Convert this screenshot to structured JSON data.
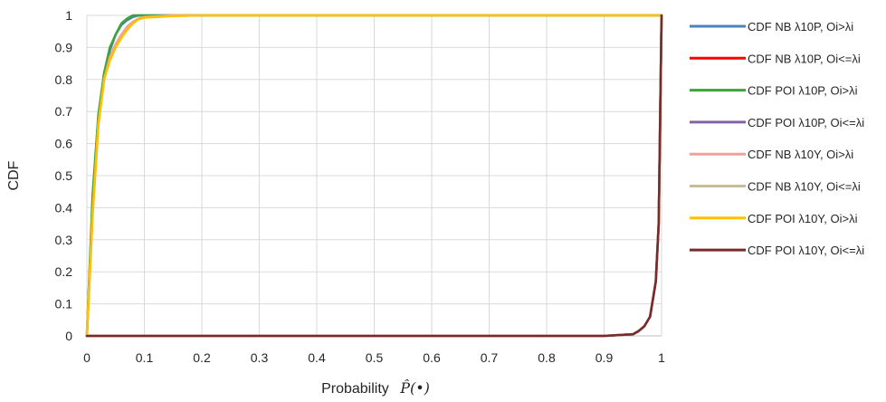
{
  "chart_data": {
    "type": "line",
    "title": "",
    "xlabel": "Probability",
    "xlabel_math": "P̂(•)",
    "ylabel": "CDF",
    "xlim": [
      0,
      1
    ],
    "ylim": [
      0,
      1
    ],
    "x_ticks": [
      "0",
      "0.1",
      "0.2",
      "0.3",
      "0.4",
      "0.5",
      "0.6",
      "0.7",
      "0.8",
      "0.9",
      "1"
    ],
    "y_ticks": [
      "0",
      "0.1",
      "0.2",
      "0.3",
      "0.4",
      "0.5",
      "0.6",
      "0.7",
      "0.8",
      "0.9",
      "1"
    ],
    "grid": true,
    "legend_position": "right",
    "series": [
      {
        "name": "CDF NB λ10P, Oi>λi",
        "color": "#4F81BD",
        "x": [
          0,
          0.01,
          0.02,
          0.03,
          0.04,
          0.05,
          0.06,
          0.07,
          0.08,
          0.09,
          0.1,
          0.15,
          0.2,
          1,
          1
        ],
        "y": [
          0,
          0.42,
          0.68,
          0.81,
          0.89,
          0.94,
          0.97,
          0.985,
          0.995,
          1,
          1,
          1,
          1,
          1,
          1
        ]
      },
      {
        "name": "CDF NB λ10P, Oi<=λi",
        "color": "#FF0000",
        "x": [
          0,
          0.9,
          0.95,
          0.96,
          0.97,
          0.98,
          0.99,
          0.995,
          1
        ],
        "y": [
          0,
          0,
          0.005,
          0.015,
          0.03,
          0.06,
          0.17,
          0.35,
          1
        ]
      },
      {
        "name": "CDF POI λ10P, Oi>λi",
        "color": "#3DA33A",
        "x": [
          0,
          0.01,
          0.02,
          0.03,
          0.04,
          0.05,
          0.06,
          0.07,
          0.08,
          0.09,
          0.1,
          0.15,
          0.2,
          1,
          1
        ],
        "y": [
          0,
          0.44,
          0.69,
          0.82,
          0.9,
          0.94,
          0.975,
          0.99,
          1,
          1,
          1,
          1,
          1,
          1,
          1
        ]
      },
      {
        "name": "CDF POI λ10P, Oi<=λi",
        "color": "#8064A2",
        "x": [
          0,
          0.9,
          0.95,
          0.96,
          0.97,
          0.98,
          0.99,
          0.995,
          1
        ],
        "y": [
          0,
          0,
          0.005,
          0.015,
          0.03,
          0.06,
          0.17,
          0.35,
          1
        ]
      },
      {
        "name": "CDF NB  λ10Y, Oi>λi",
        "color": "#F2A09B",
        "x": [
          0,
          0.01,
          0.02,
          0.03,
          0.04,
          0.05,
          0.06,
          0.07,
          0.08,
          0.09,
          0.1,
          0.15,
          0.2,
          1,
          1
        ],
        "y": [
          0,
          0.38,
          0.66,
          0.8,
          0.87,
          0.91,
          0.94,
          0.965,
          0.98,
          0.99,
          0.995,
          1,
          1,
          1,
          1
        ]
      },
      {
        "name": "CDF NB λ10Y, Oi<=λi",
        "color": "#C4BD97",
        "x": [
          0,
          0.9,
          0.95,
          0.96,
          0.97,
          0.98,
          0.99,
          0.995,
          1
        ],
        "y": [
          0,
          0,
          0.005,
          0.015,
          0.03,
          0.06,
          0.17,
          0.35,
          1
        ]
      },
      {
        "name": "CDF POI λ10Y, Oi>λi",
        "color": "#FFC000",
        "x": [
          0,
          0.01,
          0.02,
          0.03,
          0.04,
          0.05,
          0.06,
          0.07,
          0.08,
          0.09,
          0.1,
          0.15,
          0.2,
          1,
          1
        ],
        "y": [
          0,
          0.38,
          0.66,
          0.8,
          0.86,
          0.9,
          0.93,
          0.955,
          0.975,
          0.988,
          0.993,
          0.998,
          1,
          1,
          1
        ]
      },
      {
        "name": "CDF POI λ10Y, Oi<=λi",
        "color": "#772C2A",
        "x": [
          0,
          0.9,
          0.95,
          0.96,
          0.97,
          0.98,
          0.99,
          0.995,
          1
        ],
        "y": [
          0,
          0,
          0.005,
          0.015,
          0.03,
          0.06,
          0.17,
          0.35,
          1
        ]
      }
    ]
  }
}
